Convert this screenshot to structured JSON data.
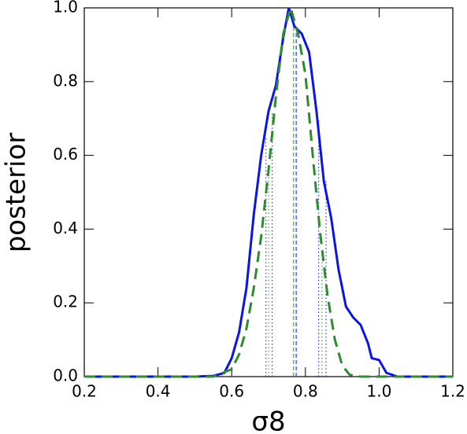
{
  "chart_data": {
    "type": "line",
    "xlabel": "σ8",
    "ylabel": "posterior",
    "xlim": [
      0.2,
      1.2
    ],
    "ylim": [
      0,
      1
    ],
    "xticks": [
      0.2,
      0.4,
      0.6,
      0.8,
      1,
      1.2
    ],
    "xtick_labels": [
      "0.2",
      "0.4",
      "0.6",
      "0.8",
      "1.0",
      "1.2"
    ],
    "yticks": [
      {
        "value": 0,
        "label": "0.0"
      },
      0.2,
      0.4,
      0.6,
      0.8,
      {
        "value": 1,
        "label": "1.0"
      }
    ],
    "series": [
      {
        "color": "#0a14e6",
        "dash": "solid",
        "x": [
          0.2,
          0.5,
          0.55,
          0.58,
          0.6,
          0.62,
          0.64,
          0.66,
          0.68,
          0.7,
          0.72,
          0.74,
          0.755,
          0.77,
          0.79,
          0.81,
          0.83,
          0.85,
          0.87,
          0.89,
          0.91,
          0.93,
          0.95,
          0.97,
          0.98,
          1.0,
          1.02,
          1.05,
          1.2
        ],
        "values": [
          0,
          0,
          0.002,
          0.01,
          0.05,
          0.12,
          0.24,
          0.44,
          0.6,
          0.72,
          0.79,
          0.92,
          1.0,
          0.95,
          0.93,
          0.88,
          0.72,
          0.53,
          0.43,
          0.29,
          0.19,
          0.16,
          0.14,
          0.09,
          0.05,
          0.045,
          0.01,
          0,
          0
        ]
      },
      {
        "color": "#2e8b2e",
        "dash": "dashed",
        "x": [
          0.2,
          0.55,
          0.6,
          0.62,
          0.64,
          0.66,
          0.68,
          0.7,
          0.72,
          0.74,
          0.76,
          0.78,
          0.8,
          0.82,
          0.84,
          0.86,
          0.88,
          0.9,
          0.92,
          0.95,
          1.2
        ],
        "values": [
          0,
          0,
          0.02,
          0.06,
          0.13,
          0.24,
          0.38,
          0.56,
          0.76,
          0.93,
          1.0,
          0.93,
          0.82,
          0.6,
          0.39,
          0.22,
          0.1,
          0.03,
          0.005,
          0,
          0
        ]
      }
    ],
    "vlines": [
      {
        "color": "#0a14e6",
        "style": "dotted",
        "x": [
          0.693,
          0.71,
          0.836,
          0.856
        ],
        "heights": [
          0.65,
          0.72,
          0.7,
          0.53
        ]
      },
      {
        "color": "#2e8b2e",
        "style": "dotted",
        "x": [
          0.7,
          0.845
        ],
        "heights": [
          0.56,
          0.33
        ]
      },
      {
        "color": "#0a14e6",
        "style": "dashed",
        "x": [
          0.775
        ],
        "heights": [
          0.95
        ]
      },
      {
        "color": "#2e8b2e",
        "style": "dashed",
        "x": [
          0.768
        ],
        "heights": [
          0.97
        ]
      }
    ]
  }
}
